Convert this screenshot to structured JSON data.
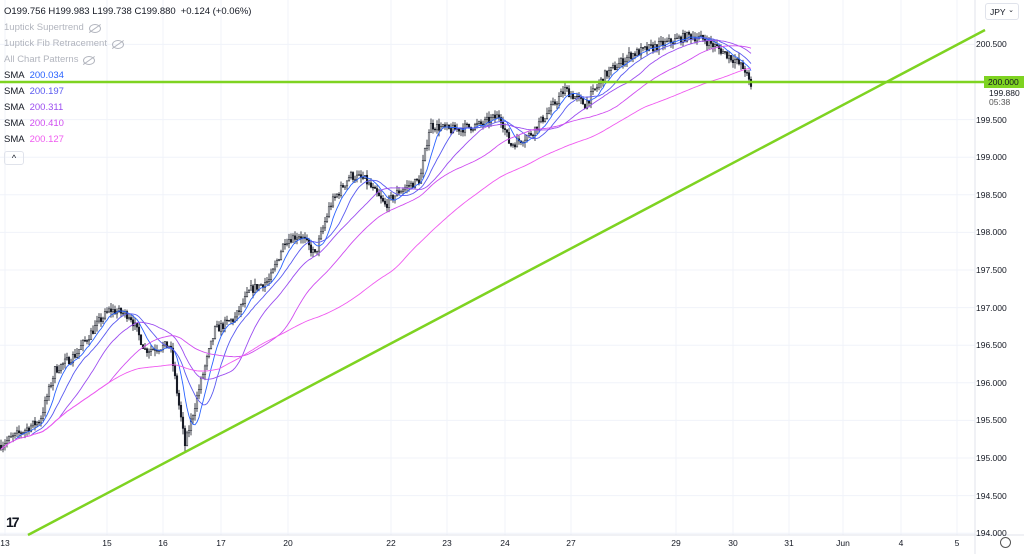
{
  "header": {
    "ohlc": "O199.756 H199.983 L199.738 C199.880",
    "change": "+0.124 (+0.06%)"
  },
  "indicators": [
    {
      "label": "1uptick Supertrend",
      "hidden": true,
      "icon": "eye-off-icon"
    },
    {
      "label": "1uptick Fib Retracement",
      "hidden": true,
      "icon": "eye-off-icon"
    },
    {
      "label": "All Chart Patterns",
      "hidden": true,
      "icon": "eye-off-icon"
    }
  ],
  "sma": [
    {
      "label": "SMA",
      "value": "200.034",
      "color": "#2962ff"
    },
    {
      "label": "SMA",
      "value": "200.197",
      "color": "#5a5af0"
    },
    {
      "label": "SMA",
      "value": "200.311",
      "color": "#9c4df0"
    },
    {
      "label": "SMA",
      "value": "200.410",
      "color": "#d04df0"
    },
    {
      "label": "SMA",
      "value": "200.127",
      "color": "#f05af0"
    }
  ],
  "collapse_icon": "^",
  "currency": "JPY",
  "horizontal_line": {
    "price": "200.000",
    "color": "#7ed321"
  },
  "last_price": "199.880",
  "countdown": "05:38",
  "chart_data": {
    "type": "candlestick",
    "y_ticks": [
      "200.500",
      "200.000",
      "199.500",
      "199.000",
      "198.500",
      "198.000",
      "197.500",
      "197.000",
      "196.500",
      "196.000",
      "195.500",
      "195.000",
      "194.500",
      "194.000"
    ],
    "ylim": [
      194.0,
      200.7
    ],
    "x_ticks": [
      "13",
      "15",
      "16",
      "17",
      "20",
      "22",
      "23",
      "24",
      "27",
      "29",
      "30",
      "31",
      "Jun",
      "4",
      "5"
    ],
    "approx_close_at_ticks": [
      {
        "date": "13",
        "price": 195.17
      },
      {
        "date": "15",
        "price": 196.9
      },
      {
        "date": "16",
        "price": 196.5
      },
      {
        "date": "17",
        "price": 196.75
      },
      {
        "date": "20",
        "price": 197.9
      },
      {
        "date": "22",
        "price": 198.45
      },
      {
        "date": "23",
        "price": 199.38
      },
      {
        "date": "24",
        "price": 199.2
      },
      {
        "date": "27",
        "price": 199.85
      },
      {
        "date": "29",
        "price": 200.5
      },
      {
        "date": "30",
        "price": 200.3
      }
    ],
    "last_close": 199.88,
    "trendline_color": "#7ed321",
    "grid": true
  }
}
